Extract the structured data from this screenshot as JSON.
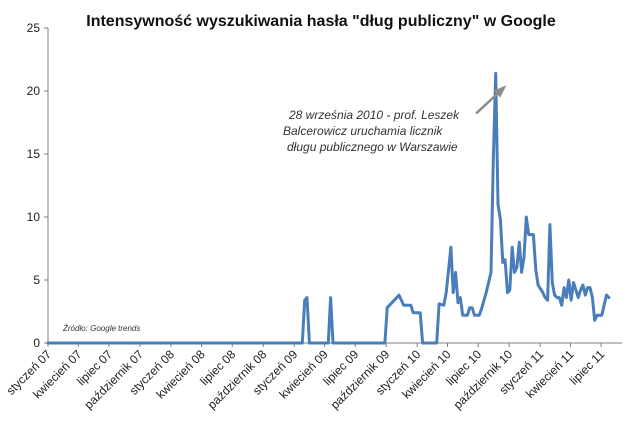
{
  "chart_data": {
    "type": "line",
    "title": "Intensywność wyszukiwania hasła \"dług publiczny\" w Google",
    "xlabel": "",
    "ylabel": "",
    "ylim": [
      0,
      25
    ],
    "yticks": [
      0,
      5,
      10,
      15,
      20,
      25
    ],
    "grid": false,
    "legend": "none",
    "x_tick_labels": [
      "styczeń 07",
      "kwiecień 07",
      "lipiec 07",
      "październik 07",
      "styczeń 08",
      "kwiecień 08",
      "lipiec 08",
      "październik 08",
      "styczeń 09",
      "kwiecień 09",
      "lipiec 09",
      "październik 09",
      "styczeń 10",
      "kwiecień 10",
      "lipiec 10",
      "październik 10",
      "styczeń 11",
      "kwiecień 11",
      "lipiec 11"
    ],
    "x_start": "2007-01",
    "x_end": "2011-09",
    "annotation": {
      "lines": [
        "28 września 2010 - prof. Leszek",
        "Balcerowicz uruchamia licznik",
        "długu publicznego w Warszawie"
      ],
      "points_to_date": "2010-09-28"
    },
    "source_note": "Źródło: Google trends",
    "series_color": "#4a7ebb",
    "series": [
      {
        "points": [
          [
            "2007-01-01",
            0
          ],
          [
            "2009-01-25",
            0
          ],
          [
            "2009-02-01",
            3.4
          ],
          [
            "2009-02-08",
            3.6
          ],
          [
            "2009-02-15",
            0
          ],
          [
            "2009-04-12",
            0
          ],
          [
            "2009-04-19",
            3.6
          ],
          [
            "2009-04-26",
            0
          ],
          [
            "2009-09-27",
            0
          ],
          [
            "2009-10-04",
            2.8
          ],
          [
            "2009-10-25",
            3.4
          ],
          [
            "2009-11-08",
            3.8
          ],
          [
            "2009-11-22",
            3.0
          ],
          [
            "2009-12-13",
            3.0
          ],
          [
            "2009-12-20",
            2.4
          ],
          [
            "2010-01-10",
            2.4
          ],
          [
            "2010-01-17",
            0
          ],
          [
            "2010-02-28",
            0
          ],
          [
            "2010-03-07",
            3.1
          ],
          [
            "2010-03-21",
            3.0
          ],
          [
            "2010-03-28",
            4.0
          ],
          [
            "2010-04-11",
            7.6
          ],
          [
            "2010-04-18",
            4.0
          ],
          [
            "2010-04-25",
            5.6
          ],
          [
            "2010-05-02",
            3.2
          ],
          [
            "2010-05-09",
            3.6
          ],
          [
            "2010-05-16",
            2.2
          ],
          [
            "2010-05-30",
            2.2
          ],
          [
            "2010-06-06",
            2.8
          ],
          [
            "2010-06-13",
            2.8
          ],
          [
            "2010-06-20",
            2.2
          ],
          [
            "2010-07-04",
            2.2
          ],
          [
            "2010-07-11",
            2.7
          ],
          [
            "2010-07-25",
            4.0
          ],
          [
            "2010-08-08",
            5.6
          ],
          [
            "2010-08-15",
            14.5
          ],
          [
            "2010-08-22",
            21.4
          ],
          [
            "2010-08-29",
            11.0
          ],
          [
            "2010-09-05",
            9.8
          ],
          [
            "2010-09-12",
            6.4
          ],
          [
            "2010-09-19",
            6.6
          ],
          [
            "2010-09-26",
            4.0
          ],
          [
            "2010-10-03",
            4.2
          ],
          [
            "2010-10-10",
            7.6
          ],
          [
            "2010-10-17",
            5.6
          ],
          [
            "2010-10-24",
            6.0
          ],
          [
            "2010-10-31",
            8.0
          ],
          [
            "2010-11-07",
            5.6
          ],
          [
            "2010-11-14",
            6.8
          ],
          [
            "2010-11-21",
            10.0
          ],
          [
            "2010-11-28",
            8.6
          ],
          [
            "2010-12-12",
            8.6
          ],
          [
            "2010-12-19",
            5.8
          ],
          [
            "2010-12-26",
            4.6
          ],
          [
            "2011-01-09",
            4.0
          ],
          [
            "2011-01-16",
            3.6
          ],
          [
            "2011-01-23",
            3.4
          ],
          [
            "2011-01-30",
            9.4
          ],
          [
            "2011-02-06",
            4.8
          ],
          [
            "2011-02-13",
            3.8
          ],
          [
            "2011-02-20",
            3.6
          ],
          [
            "2011-02-27",
            3.6
          ],
          [
            "2011-03-06",
            3.0
          ],
          [
            "2011-03-13",
            4.4
          ],
          [
            "2011-03-20",
            3.6
          ],
          [
            "2011-03-27",
            5.0
          ],
          [
            "2011-04-03",
            3.4
          ],
          [
            "2011-04-10",
            4.8
          ],
          [
            "2011-04-17",
            4.2
          ],
          [
            "2011-04-24",
            3.6
          ],
          [
            "2011-05-01",
            4.2
          ],
          [
            "2011-05-08",
            4.6
          ],
          [
            "2011-05-15",
            3.8
          ],
          [
            "2011-05-22",
            4.4
          ],
          [
            "2011-05-29",
            4.4
          ],
          [
            "2011-06-05",
            3.6
          ],
          [
            "2011-06-12",
            1.8
          ],
          [
            "2011-06-19",
            2.2
          ],
          [
            "2011-07-03",
            2.2
          ],
          [
            "2011-07-10",
            3.0
          ],
          [
            "2011-07-17",
            3.8
          ],
          [
            "2011-07-24",
            3.6
          ]
        ]
      }
    ]
  }
}
